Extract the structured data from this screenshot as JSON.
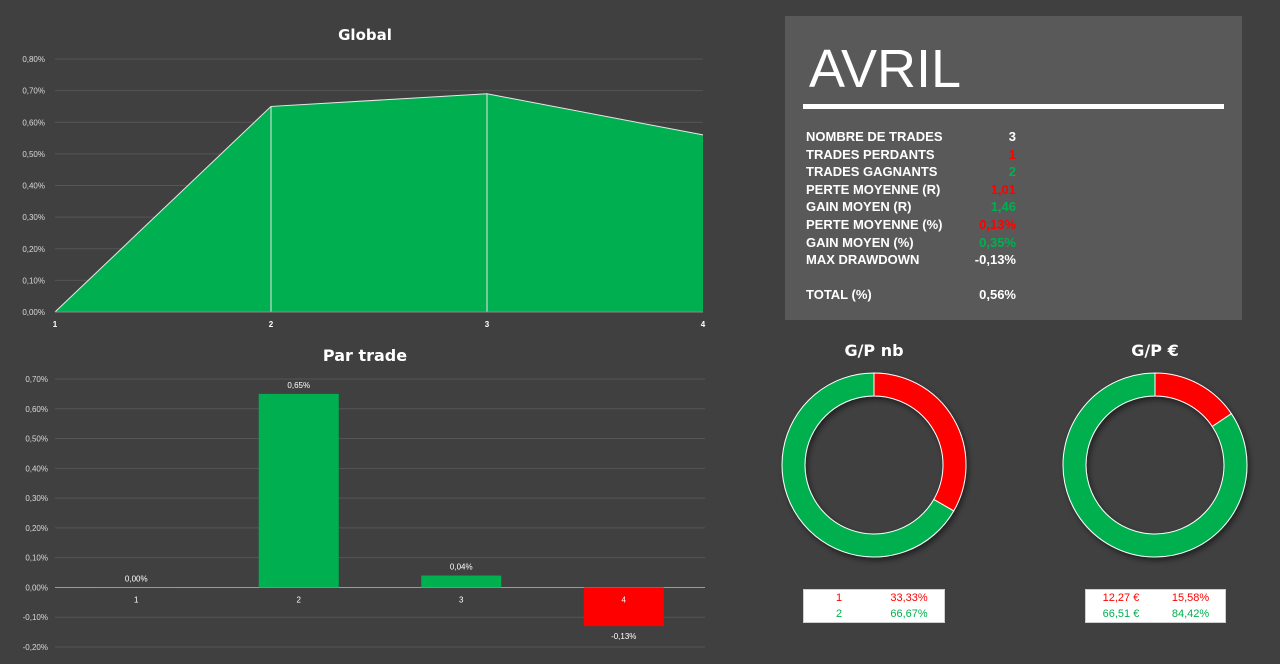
{
  "colors": {
    "green": "#00b050",
    "red": "#ff0000",
    "background": "#404040",
    "panel": "#595959"
  },
  "chart_data": [
    {
      "type": "area",
      "title": "Global",
      "x": [
        1,
        2,
        3,
        4
      ],
      "values": [
        0.0,
        0.65,
        0.69,
        0.56
      ],
      "ylim": [
        0,
        0.8
      ],
      "yticks": [
        "0,00%",
        "0,10%",
        "0,20%",
        "0,30%",
        "0,40%",
        "0,50%",
        "0,60%",
        "0,70%",
        "0,80%"
      ],
      "xticks": [
        "1",
        "2",
        "3",
        "4"
      ],
      "grid": true,
      "color": "#00b050"
    },
    {
      "type": "bar",
      "title": "Par trade",
      "categories": [
        "1",
        "2",
        "3",
        "4"
      ],
      "values": [
        0.0,
        0.65,
        0.04,
        -0.13
      ],
      "data_labels": [
        "0,00%",
        "0,65%",
        "0,04%",
        "-0,13%"
      ],
      "ylim": [
        -0.2,
        0.7
      ],
      "yticks": [
        "-0,20%",
        "-0,10%",
        "0,00%",
        "0,10%",
        "0,20%",
        "0,30%",
        "0,40%",
        "0,50%",
        "0,60%",
        "0,70%"
      ],
      "grid": true
    },
    {
      "type": "pie",
      "title": "G/P nb",
      "labels": [
        "1",
        "2"
      ],
      "values": [
        33.33,
        66.67
      ],
      "colors": [
        "#ff0000",
        "#00b050"
      ],
      "legend": [
        {
          "value": "1",
          "percent": "33,33%"
        },
        {
          "value": "2",
          "percent": "66,67%"
        }
      ]
    },
    {
      "type": "pie",
      "title": "G/P €",
      "labels": [
        "12,27 €",
        "66,51 €"
      ],
      "values": [
        15.58,
        84.42
      ],
      "colors": [
        "#ff0000",
        "#00b050"
      ],
      "legend": [
        {
          "value": "12,27 €",
          "percent": "15,58%"
        },
        {
          "value": "66,51 €",
          "percent": "84,42%"
        }
      ]
    }
  ],
  "summary": {
    "title": "AVRIL",
    "rows": [
      {
        "label": "NOMBRE DE TRADES",
        "value": "3",
        "color": "#ffffff"
      },
      {
        "label": "TRADES PERDANTS",
        "value": "1",
        "color": "#ff0000"
      },
      {
        "label": "TRADES GAGNANTS",
        "value": "2",
        "color": "#00b050"
      },
      {
        "label": "PERTE MOYENNE (R)",
        "value": "1,01",
        "color": "#ff0000"
      },
      {
        "label": "GAIN MOYEN (R)",
        "value": "1,46",
        "color": "#00b050"
      },
      {
        "label": "PERTE MOYENNE (%)",
        "value": "0,13%",
        "color": "#ff0000"
      },
      {
        "label": "GAIN MOYEN (%)",
        "value": "0,35%",
        "color": "#00b050"
      },
      {
        "label": "MAX DRAWDOWN",
        "value": "-0,13%",
        "color": "#ffffff"
      }
    ],
    "total": {
      "label": "TOTAL (%)",
      "value": "0,56%",
      "color": "#ffffff"
    }
  }
}
